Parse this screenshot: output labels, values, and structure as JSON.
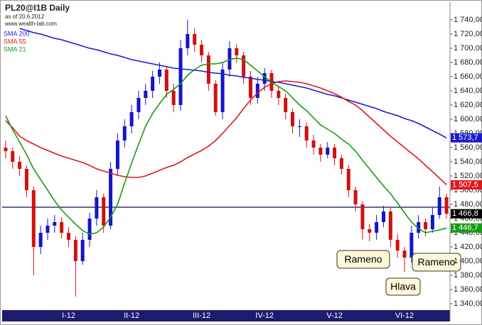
{
  "chart_data": {
    "type": "candlestick",
    "title": "PL20@I1B Daily",
    "subtitle": "as of 20.6.2012",
    "source": "www.wealth-lab.com",
    "categories": [
      null,
      null,
      null,
      null,
      null,
      null,
      null,
      null,
      null,
      "I-12",
      null,
      null,
      null,
      null,
      null,
      null,
      null,
      null,
      "II-12",
      null,
      null,
      null,
      null,
      null,
      null,
      null,
      null,
      null,
      "III-12",
      null,
      null,
      null,
      null,
      null,
      null,
      null,
      null,
      "IV-12",
      null,
      null,
      null,
      null,
      null,
      null,
      null,
      null,
      null,
      "V-12",
      null,
      null,
      null,
      null,
      null,
      null,
      null,
      null,
      null,
      "VI-12",
      null,
      null,
      null,
      null,
      null,
      null
    ],
    "open": [
      1560,
      1555,
      1540,
      1530,
      1500,
      1420,
      1440,
      1450,
      1455,
      1440,
      1430,
      1400,
      1430,
      1460,
      1490,
      1450,
      1530,
      1570,
      1590,
      1610,
      1630,
      1640,
      1660,
      1670,
      1640,
      1620,
      1700,
      1720,
      1705,
      1690,
      1650,
      1610,
      1670,
      1700,
      1690,
      1660,
      1630,
      1650,
      1665,
      1640,
      1630,
      1610,
      1590,
      1590,
      1570,
      1560,
      1550,
      1560,
      1545,
      1530,
      1500,
      1480,
      1445,
      1440,
      1455,
      1470,
      1430,
      1415,
      1405,
      1440,
      1455,
      1445,
      1465,
      1490
    ],
    "high": [
      1570,
      1560,
      1548,
      1535,
      1505,
      1450,
      1460,
      1465,
      1462,
      1448,
      1435,
      1440,
      1468,
      1500,
      1495,
      1540,
      1580,
      1600,
      1620,
      1640,
      1650,
      1668,
      1680,
      1675,
      1650,
      1712,
      1740,
      1728,
      1712,
      1695,
      1655,
      1680,
      1710,
      1706,
      1695,
      1668,
      1660,
      1672,
      1670,
      1648,
      1636,
      1615,
      1600,
      1595,
      1578,
      1565,
      1568,
      1565,
      1550,
      1535,
      1505,
      1484,
      1452,
      1465,
      1478,
      1475,
      1438,
      1420,
      1450,
      1465,
      1460,
      1475,
      1505,
      1495
    ],
    "low": [
      1545,
      1530,
      1520,
      1490,
      1380,
      1410,
      1430,
      1440,
      1432,
      1420,
      1350,
      1395,
      1420,
      1450,
      1440,
      1445,
      1520,
      1560,
      1580,
      1600,
      1620,
      1630,
      1650,
      1630,
      1610,
      1612,
      1690,
      1695,
      1680,
      1640,
      1605,
      1600,
      1660,
      1680,
      1650,
      1620,
      1622,
      1640,
      1630,
      1620,
      1600,
      1580,
      1575,
      1560,
      1550,
      1540,
      1545,
      1535,
      1522,
      1490,
      1470,
      1430,
      1428,
      1430,
      1448,
      1420,
      1405,
      1385,
      1398,
      1432,
      1435,
      1440,
      1460,
      1460
    ],
    "close": [
      1555,
      1540,
      1530,
      1500,
      1420,
      1440,
      1450,
      1455,
      1440,
      1430,
      1400,
      1430,
      1460,
      1490,
      1450,
      1530,
      1570,
      1590,
      1610,
      1630,
      1640,
      1660,
      1670,
      1640,
      1620,
      1700,
      1720,
      1705,
      1690,
      1650,
      1610,
      1670,
      1700,
      1690,
      1660,
      1630,
      1650,
      1665,
      1640,
      1630,
      1610,
      1590,
      1590,
      1570,
      1560,
      1550,
      1560,
      1545,
      1530,
      1500,
      1480,
      1445,
      1440,
      1455,
      1470,
      1430,
      1415,
      1405,
      1440,
      1455,
      1445,
      1465,
      1490,
      1466.8
    ],
    "close_label": "1 466,8",
    "up_color": "#1414c8",
    "down_color": "#d01010",
    "series": [
      {
        "name": "SMA 200",
        "color": "#1a1ad0",
        "last_label": "1 573,7",
        "values": [
          null,
          null,
          1728,
          1725,
          1722,
          1720,
          1717,
          1714,
          1712,
          1709,
          1706,
          1703,
          1700,
          1698,
          1695,
          1692,
          1690,
          1687,
          1684,
          1682,
          1680,
          1678,
          1676,
          1674,
          1672,
          1671,
          1670,
          1669,
          1668,
          1666,
          1665,
          1664,
          1662,
          1661,
          1659,
          1658,
          1656,
          1655,
          1653,
          1652,
          1650,
          1648,
          1646,
          1644,
          1641,
          1638,
          1635,
          1633,
          1630,
          1627,
          1624,
          1621,
          1618,
          1615,
          1611,
          1608,
          1605,
          1601,
          1598,
          1594,
          1589,
          1584,
          1579,
          1573.7
        ]
      },
      {
        "name": "SMA 55",
        "color": "#e01818",
        "last_label": "1 507,5",
        "values": [
          1598,
          1588,
          1576,
          1570,
          1565,
          1560,
          1556,
          1552,
          1548,
          1545,
          1542,
          1539,
          1535,
          1530,
          1527,
          1524,
          1521,
          1519,
          1518,
          1518,
          1520,
          1524,
          1528,
          1532,
          1535,
          1540,
          1546,
          1551,
          1556,
          1562,
          1570,
          1580,
          1591,
          1602,
          1615,
          1627,
          1637,
          1645,
          1650,
          1653,
          1654,
          1653,
          1652,
          1650,
          1647,
          1644,
          1640,
          1636,
          1631,
          1625,
          1620,
          1612,
          1603,
          1594,
          1585,
          1576,
          1568,
          1560,
          1552,
          1544,
          1535,
          1526,
          1517,
          1507.5
        ]
      },
      {
        "name": "SMA 21",
        "color": "#179a17",
        "last_label": "1 446,7",
        "values": [
          1605,
          1585,
          1568,
          1550,
          1530,
          1515,
          1500,
          1485,
          1472,
          1462,
          1452,
          1443,
          1438,
          1440,
          1448,
          1462,
          1480,
          1510,
          1538,
          1565,
          1590,
          1608,
          1622,
          1635,
          1642,
          1650,
          1662,
          1670,
          1676,
          1678,
          1678,
          1680,
          1684,
          1686,
          1684,
          1676,
          1668,
          1660,
          1652,
          1646,
          1640,
          1630,
          1620,
          1612,
          1602,
          1592,
          1586,
          1580,
          1572,
          1565,
          1555,
          1542,
          1530,
          1518,
          1506,
          1495,
          1482,
          1468,
          1455,
          1446,
          1440,
          1442,
          1444,
          1446.7
        ]
      }
    ],
    "hline": {
      "value": 1476,
      "color": "#0a0a60"
    },
    "annotations": [
      {
        "text": "Rameno"
      },
      {
        "text": "Hlava"
      },
      {
        "text": "Rameno"
      }
    ],
    "ylim": [
      1331,
      1765
    ],
    "yticks": [
      {
        "value": 1340,
        "label": "1 340,00"
      },
      {
        "value": 1360,
        "label": "1 360,00"
      },
      {
        "value": 1380,
        "label": "1 380,00"
      },
      {
        "value": 1400,
        "label": "1 400,00"
      },
      {
        "value": 1420,
        "label": "1 420,00"
      },
      {
        "value": 1440,
        "label": "1 440,00"
      },
      {
        "value": 1460,
        "label": "1 460,00"
      },
      {
        "value": 1480,
        "label": "1 480,00"
      },
      {
        "value": 1500,
        "label": "1 500,00"
      },
      {
        "value": 1520,
        "label": "1 520,00"
      },
      {
        "value": 1540,
        "label": "1 540,00"
      },
      {
        "value": 1560,
        "label": "1 560,00"
      },
      {
        "value": 1580,
        "label": "1 580,00"
      },
      {
        "value": 1600,
        "label": "1 600,00"
      },
      {
        "value": 1620,
        "label": "1 620,00"
      },
      {
        "value": 1640,
        "label": "1 640,00"
      },
      {
        "value": 1660,
        "label": "1 660,00"
      },
      {
        "value": 1680,
        "label": "1 680,00"
      },
      {
        "value": 1700,
        "label": "1 700,00"
      },
      {
        "value": 1720,
        "label": "1 720,00"
      },
      {
        "value": 1740,
        "label": "1 740,00"
      }
    ]
  }
}
